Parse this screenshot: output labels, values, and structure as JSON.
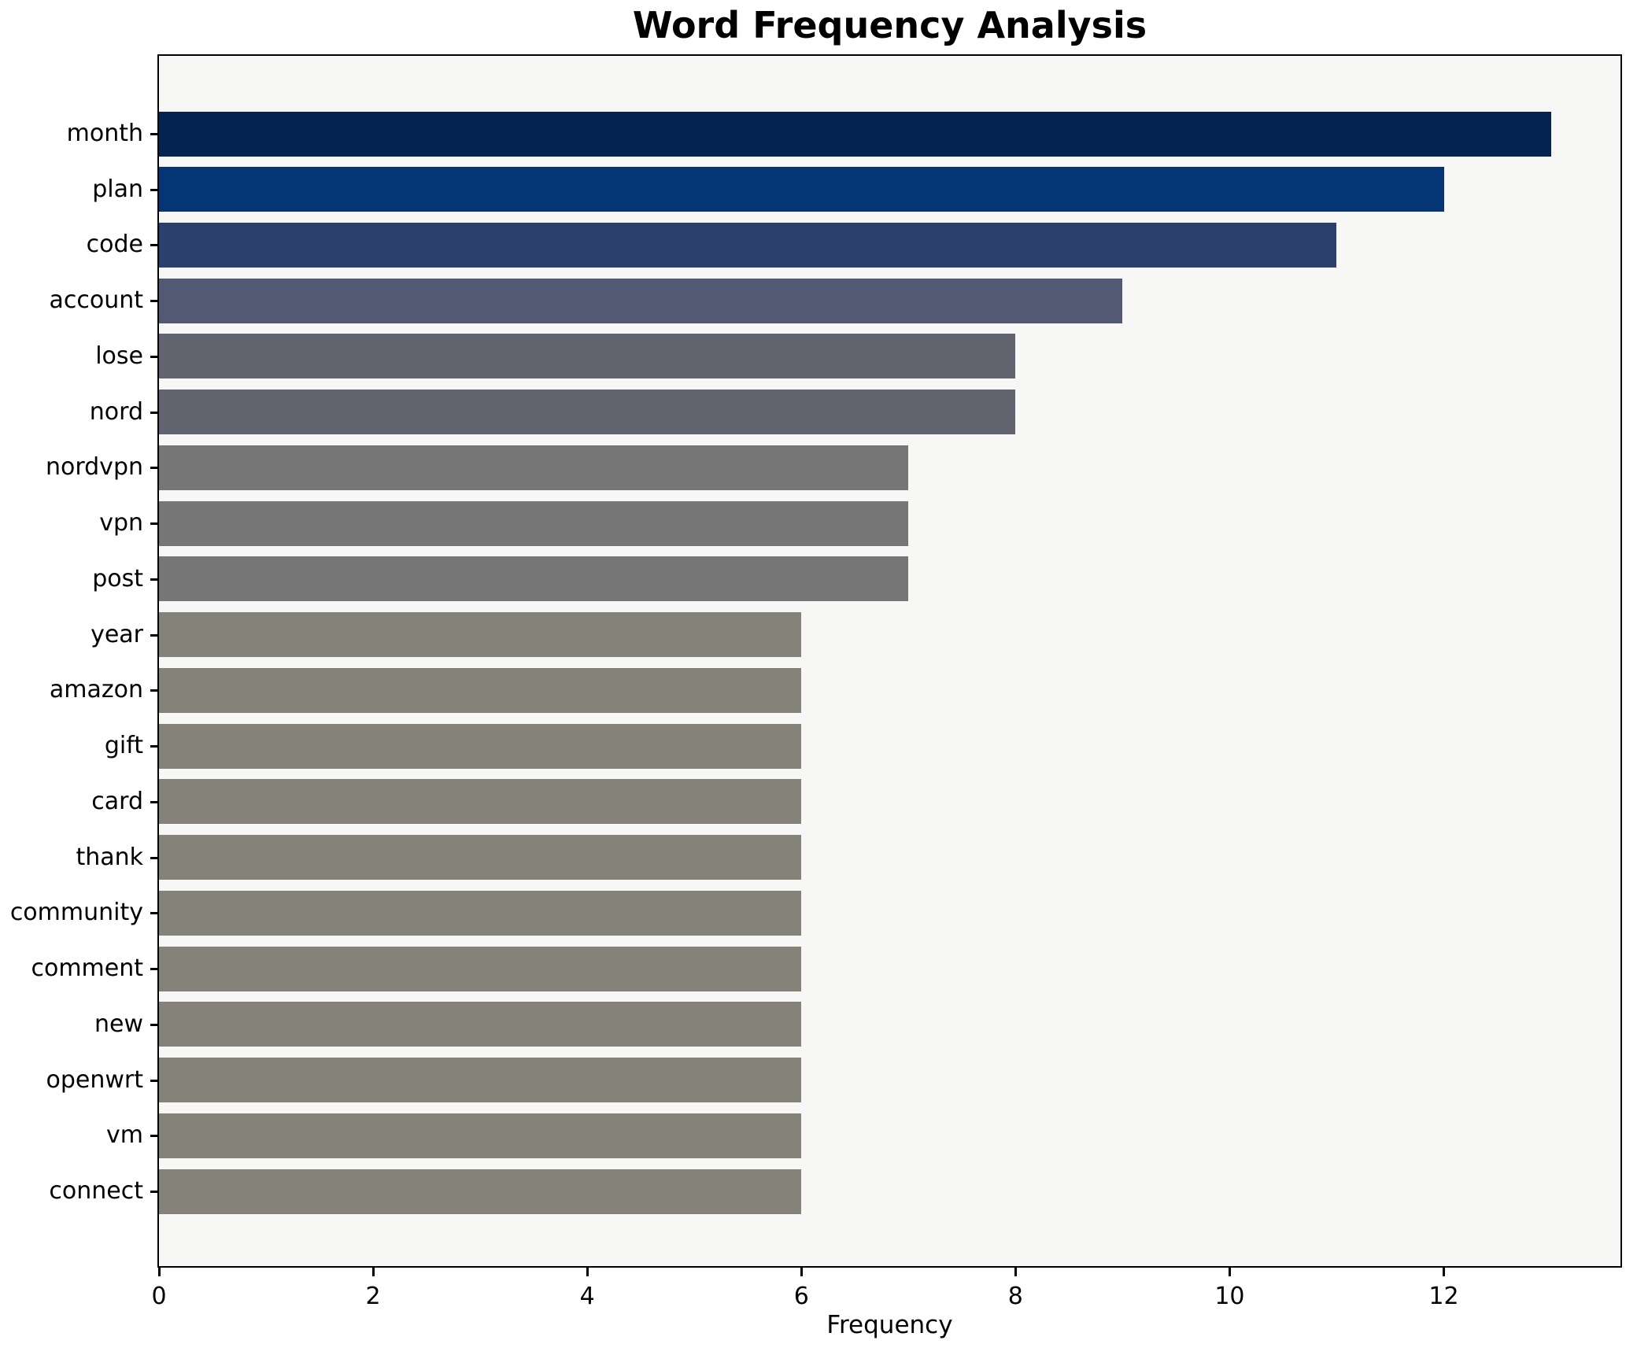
{
  "chart_data": {
    "type": "bar",
    "orientation": "horizontal",
    "title": "Word Frequency Analysis",
    "xlabel": "Frequency",
    "ylabel": "",
    "grid": false,
    "legend": null,
    "xlim": [
      0,
      13.65
    ],
    "xticks": [
      0,
      2,
      4,
      6,
      8,
      10,
      12
    ],
    "categories": [
      "month",
      "plan",
      "code",
      "account",
      "lose",
      "nord",
      "nordvpn",
      "vpn",
      "post",
      "year",
      "amazon",
      "gift",
      "card",
      "thank",
      "community",
      "comment",
      "new",
      "openwrt",
      "vm",
      "connect"
    ],
    "values": [
      13,
      12,
      11,
      9,
      8,
      8,
      7,
      7,
      7,
      6,
      6,
      6,
      6,
      6,
      6,
      6,
      6,
      6,
      6,
      6
    ],
    "bar_colors": [
      "#042350",
      "#053575",
      "#2c406e",
      "#515a72",
      "#626470",
      "#626470",
      "#767676",
      "#767676",
      "#767676",
      "#85827a",
      "#85827a",
      "#85827a",
      "#85827a",
      "#85827a",
      "#85827a",
      "#85827a",
      "#85827a",
      "#85827a",
      "#85827a",
      "#85827a"
    ],
    "plot_background": "#f7f7f6",
    "figure_background": "#ffffff",
    "spine_color": "#000000",
    "text_color": "#000000"
  }
}
